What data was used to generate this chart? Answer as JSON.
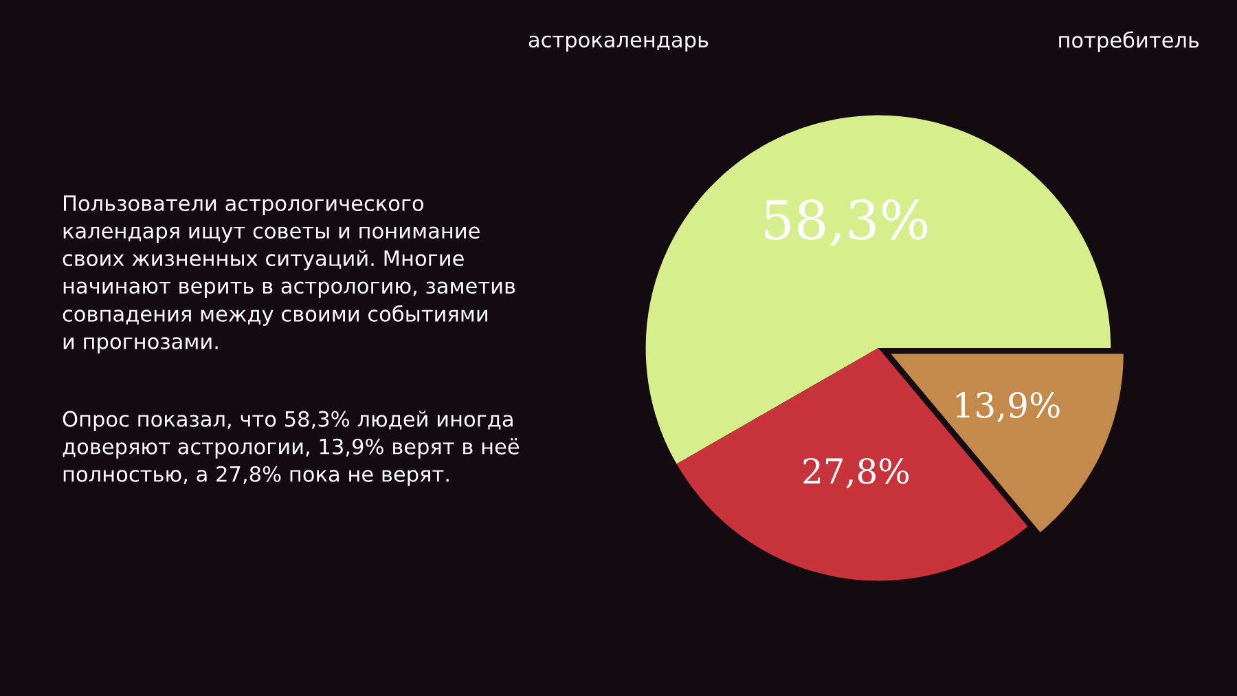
{
  "chart_data": {
    "type": "pie",
    "categories": [
      null,
      null,
      null
    ],
    "values": [
      58.3,
      27.8,
      13.9
    ],
    "colors": [
      "#d6ee8c",
      "#c9333c",
      "#c48a4c"
    ],
    "value_labels": [
      "58,3%",
      "27,8%",
      "13,9%"
    ],
    "annotations": [
      "астрокалендарь",
      "потребитель",
      "Пользователи астрологического\nкалендаря ищут советы и понимание\nсвоих жизненных ситуаций. Многие\nначинают верить в астрологию, заметив\nсовпадения между своими событиями\nи прогнозами.",
      "Опрос показал, что 58,3% людей иногда\nдоверяют астрологии, 13,9% верят в неё\nполностью, а 27,8% пока не верят."
    ]
  }
}
